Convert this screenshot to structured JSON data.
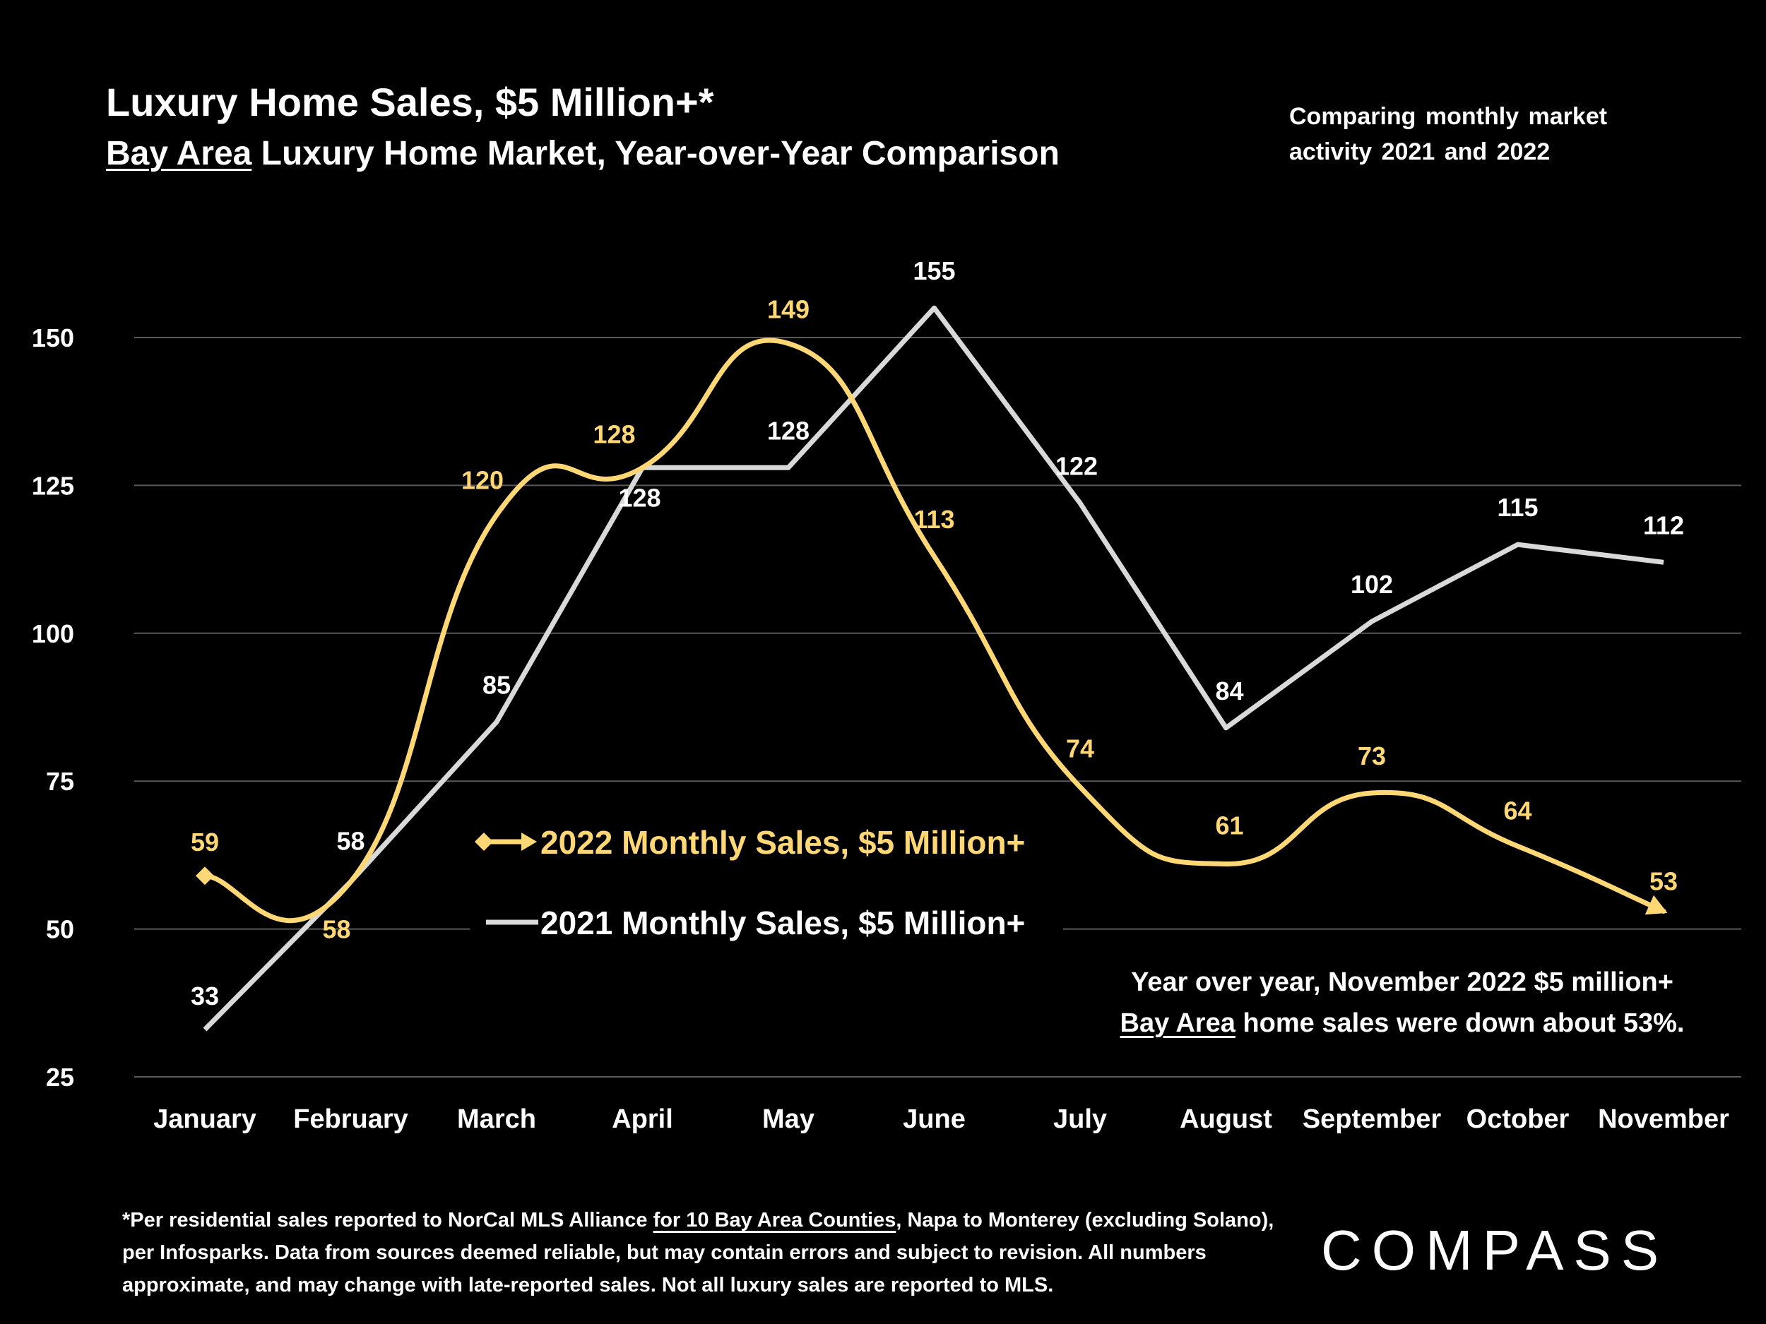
{
  "header": {
    "title": "Luxury Home Sales, $5 Million+*",
    "subtitle_underlined": "Bay Area",
    "subtitle_rest": " Luxury Home Market, Year-over-Year Comparison",
    "side_note": "Comparing  monthly  market activity 2021 and 2022"
  },
  "callout": {
    "line1": "Year over year, November 2022 $5 million+",
    "line2_underlined": "Bay Area",
    "line2_rest": " home sales were down about 53%."
  },
  "footnote": {
    "part1": "*Per residential sales reported to NorCal MLS Alliance ",
    "part2_underlined": "for 10 Bay Area Counties",
    "part3": ", Napa to Monterey (excluding Solano), per Infosparks. Data from sources deemed reliable, but may contain errors and subject to revision. All numbers approximate, and may change with late-reported sales. Not all luxury sales are reported to MLS."
  },
  "logo": {
    "text": "COMPASS"
  },
  "colors": {
    "series_2022": "#FFD875",
    "series_2021": "#D9D9D9",
    "grid": "#595959",
    "background": "#000000"
  },
  "chart_data": {
    "type": "line",
    "categories": [
      "January",
      "February",
      "March",
      "April",
      "May",
      "June",
      "July",
      "August",
      "September",
      "October",
      "November"
    ],
    "ylim": [
      25,
      155
    ],
    "yticks": [
      25,
      50,
      75,
      100,
      125,
      150
    ],
    "grid": true,
    "legend_position": "center-left",
    "series": [
      {
        "name": "2022 Monthly Sales, $5 Million+",
        "color": "#FFD875",
        "smooth": true,
        "marker": "diamond",
        "end_marker": "arrow",
        "values": [
          59,
          58,
          120,
          128,
          149,
          113,
          74,
          61,
          73,
          64,
          53
        ]
      },
      {
        "name": "2021 Monthly Sales, $5 Million+",
        "color": "#D9D9D9",
        "smooth": false,
        "values": [
          33,
          58,
          85,
          128,
          128,
          155,
          122,
          84,
          102,
          115,
          112
        ]
      }
    ]
  }
}
